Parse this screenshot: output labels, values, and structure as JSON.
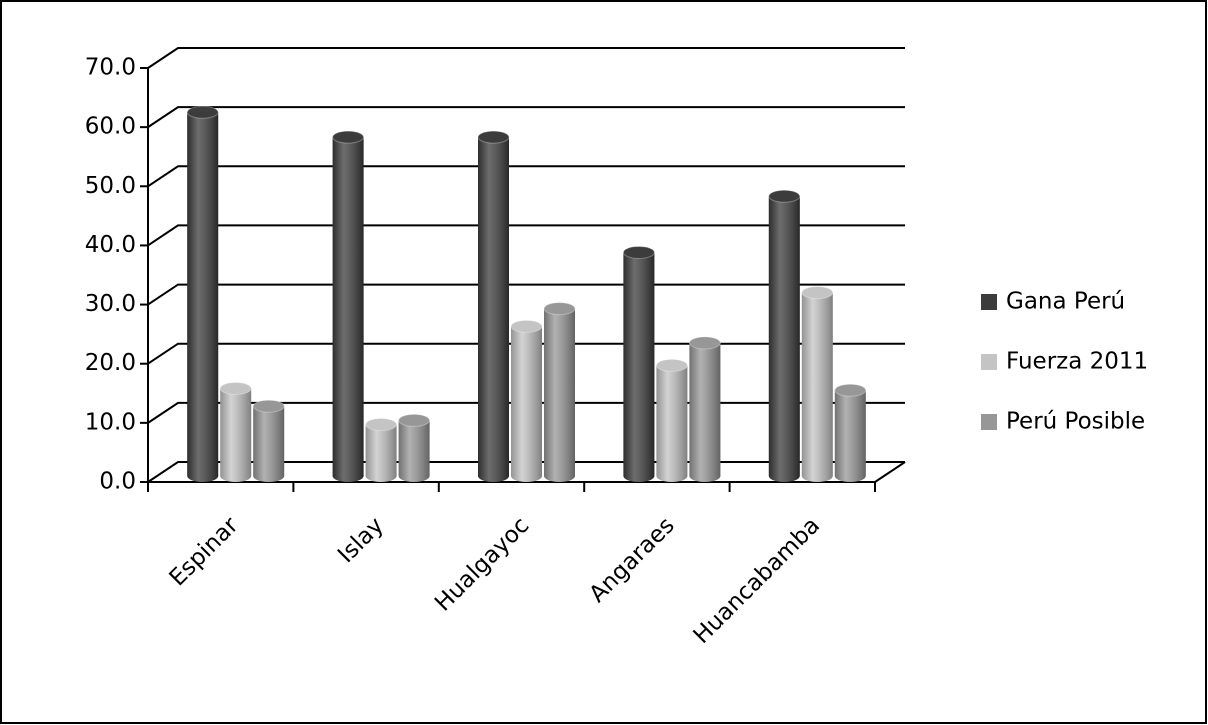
{
  "chart_data": {
    "type": "bar3d",
    "categories": [
      "Espinar",
      "Islay",
      "Hualgayoc",
      "Angaraes",
      "Huancabamba"
    ],
    "series": [
      {
        "name": "Gana Perú",
        "color": "#3c3c3c",
        "values": [
          61.5,
          57.3,
          57.3,
          37.8,
          47.3
        ]
      },
      {
        "name": "Fuerza 2011",
        "color": "#c4c4c4",
        "values": [
          14.8,
          8.7,
          25.3,
          18.7,
          31.0
        ]
      },
      {
        "name": "Perú Posible",
        "color": "#979797",
        "values": [
          11.8,
          9.4,
          28.3,
          22.5,
          14.5
        ]
      }
    ],
    "ylim": [
      0,
      70
    ],
    "yticks": [
      {
        "value": 0,
        "label": "0.0"
      },
      {
        "value": 10,
        "label": "10.0"
      },
      {
        "value": 20,
        "label": "20.0"
      },
      {
        "value": 30,
        "label": "30.0"
      },
      {
        "value": 40,
        "label": "40.0"
      },
      {
        "value": 50,
        "label": "50.0"
      },
      {
        "value": 60,
        "label": "60.0"
      },
      {
        "value": 70,
        "label": "70.0"
      }
    ],
    "grid": true,
    "legend": "right"
  }
}
